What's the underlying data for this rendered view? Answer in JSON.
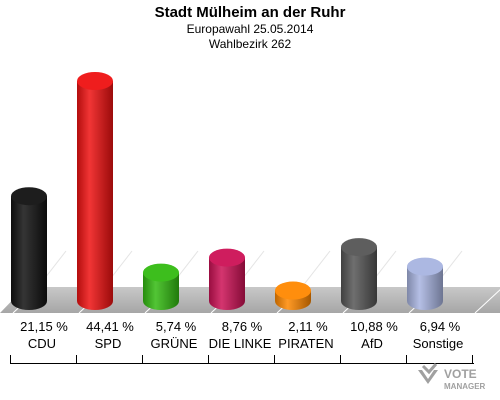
{
  "header": {
    "title": "Stadt Mülheim an der Ruhr",
    "subtitle": "Europawahl 25.05.2014",
    "district": "Wahlbezirk 262"
  },
  "logo": {
    "line1": "VOTE",
    "line2": "MANAGER"
  },
  "colors": {
    "CDU": "#111111",
    "SPD": "#ee1111",
    "GRUENE": "#33bb11",
    "LINKE": "#cc1155",
    "PIRATEN": "#ff8800",
    "AfD": "#555555",
    "Sonstige": "#a8b4e0"
  },
  "chart_data": {
    "type": "bar",
    "categories": [
      "CDU",
      "SPD",
      "GRÜNE",
      "DIE LINKE",
      "PIRATEN",
      "AfD",
      "Sonstige"
    ],
    "values": [
      21.15,
      44.41,
      5.74,
      8.76,
      2.11,
      10.88,
      6.94
    ],
    "value_labels": [
      "21,15 %",
      "44,41 %",
      "5,74 %",
      "8,76 %",
      "2,11 %",
      "10,88 %",
      "6,94 %"
    ],
    "color_keys": [
      "CDU",
      "SPD",
      "GRUENE",
      "LINKE",
      "PIRATEN",
      "AfD",
      "Sonstige"
    ],
    "grid": false,
    "style": "3d-cylinder"
  }
}
